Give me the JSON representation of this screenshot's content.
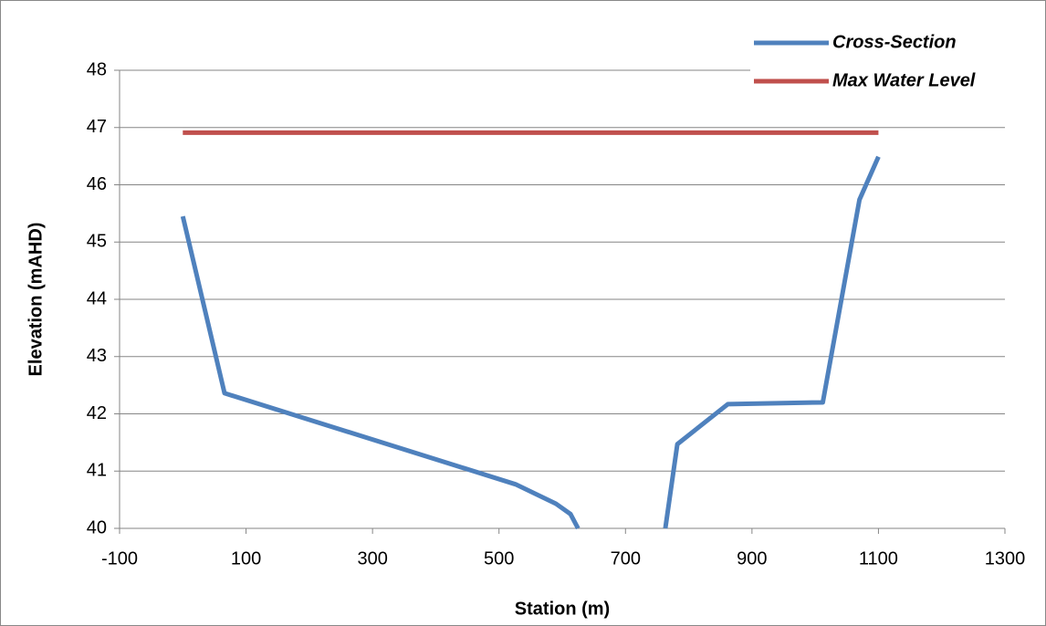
{
  "chart_data": {
    "type": "line",
    "x_label": "Station (m)",
    "y_label": "Elevation (mAHD)",
    "xlim": [
      -100,
      1300
    ],
    "xticks": [
      -100,
      100,
      300,
      500,
      700,
      900,
      1100,
      1300
    ],
    "ylim": [
      40,
      48
    ],
    "yticks": [
      40,
      41,
      42,
      43,
      44,
      45,
      46,
      47,
      48
    ],
    "grid": true,
    "legend": "top-right",
    "series": [
      {
        "name": "Cross-Section",
        "color": "#4f81bd",
        "x": [
          0,
          66,
          526,
          590,
          613,
          625,
          null,
          763,
          782,
          862,
          1012,
          1070,
          1100
        ],
        "values": [
          45.45,
          42.36,
          40.77,
          40.43,
          40.25,
          40,
          null,
          40,
          41.47,
          42.17,
          42.2,
          45.74,
          46.49
        ]
      },
      {
        "name": "Max Water Level",
        "color": "#c0504d",
        "x": [
          0,
          1100
        ],
        "values": [
          46.91,
          46.91
        ]
      }
    ]
  }
}
